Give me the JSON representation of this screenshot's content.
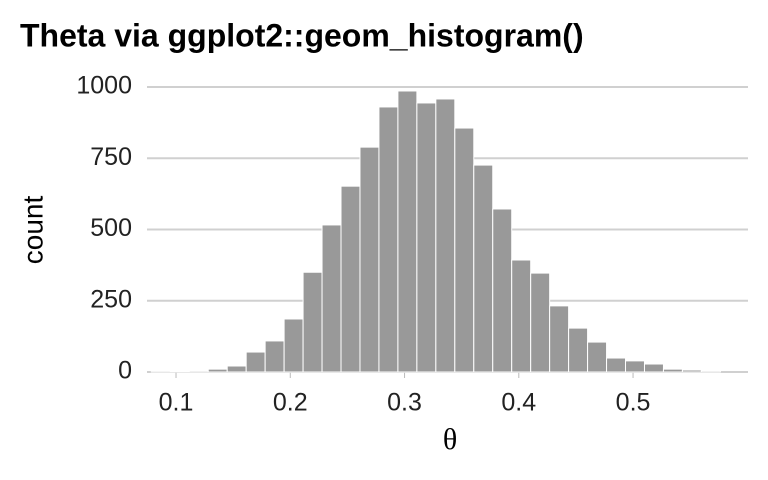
{
  "chart_data": {
    "type": "histogram",
    "title": "Theta via ggplot2::geom_histogram()",
    "x_label": "θ",
    "y_label": "count",
    "bins": [
      0.0784,
      0.095,
      0.1116,
      0.1282,
      0.1448,
      0.1614,
      0.178,
      0.1946,
      0.2112,
      0.2278,
      0.2444,
      0.261,
      0.2776,
      0.2942,
      0.3108,
      0.3274,
      0.344,
      0.3606,
      0.3772,
      0.3938,
      0.4104,
      0.427,
      0.4436,
      0.4602,
      0.4768,
      0.4934,
      0.51,
      0.5266,
      0.5432,
      0.5598,
      0.5764
    ],
    "values": [
      1,
      3,
      4,
      10,
      21,
      70,
      109,
      186,
      350,
      516,
      652,
      789,
      930,
      986,
      944,
      958,
      856,
      726,
      572,
      393,
      347,
      232,
      154,
      105,
      49,
      39,
      28,
      10,
      7,
      4
    ],
    "color": "#999999",
    "xlim": [
      0.0746,
      0.6006
    ],
    "xticks": [
      0.1,
      0.2,
      0.3,
      0.4,
      0.5
    ],
    "ylim": [
      0,
      1000
    ],
    "yticks": [
      0,
      250,
      500,
      750,
      1000
    ],
    "grid": true
  }
}
